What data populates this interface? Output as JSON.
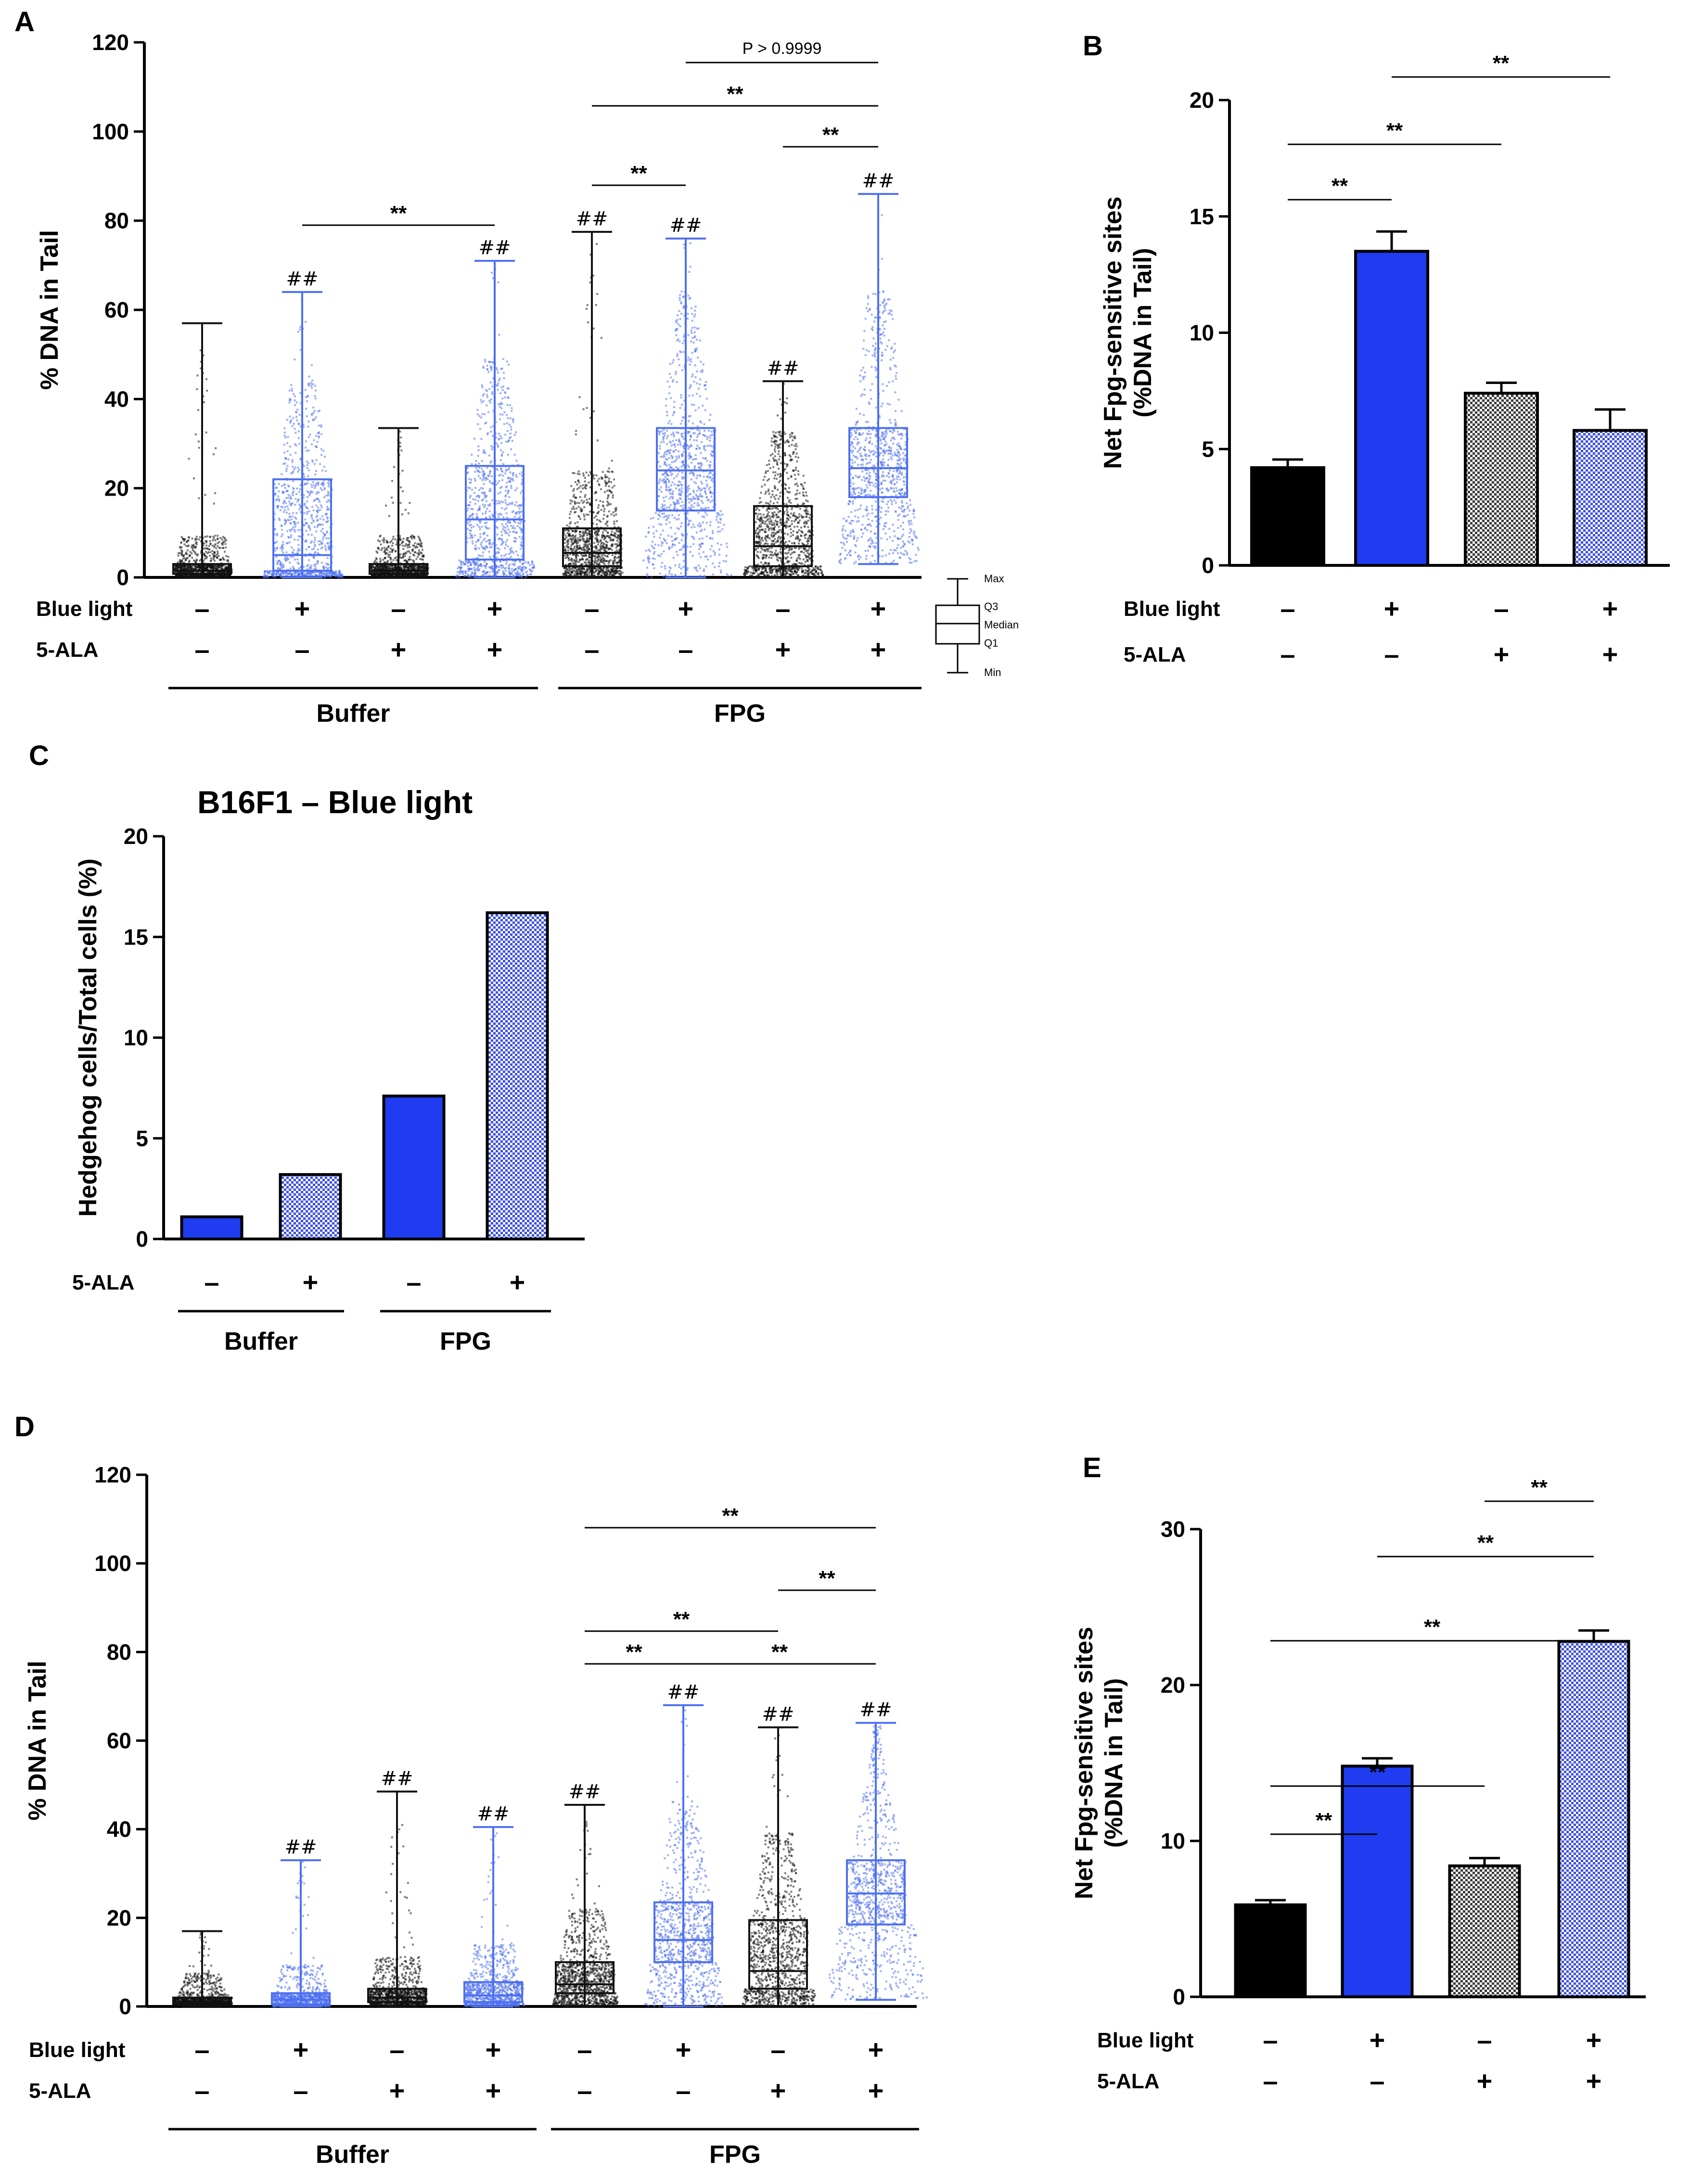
{
  "colors": {
    "blue": "#1f3cf0",
    "black": "#000000",
    "light_blue": "#4d6ff0",
    "grey": "#8a8a8a",
    "pattern_blue": "#3c50e0"
  },
  "chart_data": [
    {
      "panel": "A",
      "type": "box",
      "ylabel": "% DNA in Tail",
      "ylim": [
        0,
        120
      ],
      "yticks": [
        "0",
        "20",
        "40",
        "60",
        "80",
        "100",
        "120"
      ],
      "conditions": [
        {
          "label": "Blue light",
          "values": [
            "–",
            "+",
            "–",
            "+",
            "–",
            "+",
            "–",
            "+"
          ]
        },
        {
          "label": "5-ALA",
          "values": [
            "–",
            "–",
            "+",
            "+",
            "–",
            "–",
            "+",
            "+"
          ]
        }
      ],
      "groups": [
        "Buffer",
        "FPG"
      ],
      "boxes": [
        {
          "min": 0,
          "q1": 0.8,
          "median": 1.5,
          "q3": 3,
          "max": 57,
          "color": "black",
          "mark": ""
        },
        {
          "min": 0,
          "q1": 1.5,
          "median": 5,
          "q3": 22,
          "max": 64,
          "color": "blue",
          "mark": "##"
        },
        {
          "min": 0,
          "q1": 0.8,
          "median": 1.5,
          "q3": 3,
          "max": 33.5,
          "color": "black",
          "mark": ""
        },
        {
          "min": 0,
          "q1": 4,
          "median": 13,
          "q3": 25,
          "max": 71,
          "color": "blue",
          "mark": "##"
        },
        {
          "min": 0,
          "q1": 2.5,
          "median": 5.5,
          "q3": 11,
          "max": 77.5,
          "color": "black",
          "mark": "##"
        },
        {
          "min": 0,
          "q1": 15,
          "median": 24,
          "q3": 33.5,
          "max": 76,
          "color": "blue",
          "mark": "##"
        },
        {
          "min": 0,
          "q1": 2.5,
          "median": 7,
          "q3": 16,
          "max": 44,
          "color": "black",
          "mark": "##"
        },
        {
          "min": 3,
          "q1": 18,
          "median": 24.5,
          "q3": 33.5,
          "max": 86,
          "color": "blue",
          "mark": "##"
        }
      ],
      "brackets": [
        {
          "from": 2,
          "to": 4,
          "label": "**"
        },
        {
          "from": 5,
          "to": 6,
          "label": "**"
        },
        {
          "from": 5,
          "to": 8,
          "label": "**"
        },
        {
          "from": 7,
          "to": 8,
          "label": "**"
        },
        {
          "from": 6,
          "to": 8,
          "label": "P > 0.9999"
        }
      ],
      "legend": [
        "Max",
        "Q3",
        "Median",
        "Q1",
        "Min"
      ]
    },
    {
      "panel": "B",
      "type": "bar",
      "ylabel_lines": [
        "Net Fpg-sensitive sites",
        "(%DNA in Tail)"
      ],
      "ylim": [
        0,
        20
      ],
      "yticks": [
        "0",
        "5",
        "10",
        "15",
        "20"
      ],
      "conditions": [
        {
          "label": "Blue light",
          "values": [
            "–",
            "+",
            "–",
            "+"
          ]
        },
        {
          "label": "5-ALA",
          "values": [
            "–",
            "–",
            "+",
            "+"
          ]
        }
      ],
      "bars": [
        {
          "value": 4.2,
          "error": 0.35,
          "style": "black"
        },
        {
          "value": 13.5,
          "error": 0.85,
          "style": "blue"
        },
        {
          "value": 7.4,
          "error": 0.45,
          "style": "grey-check"
        },
        {
          "value": 5.8,
          "error": 0.9,
          "style": "blue-check"
        }
      ],
      "brackets": [
        {
          "from": 1,
          "to": 2,
          "label": "**"
        },
        {
          "from": 1,
          "to": 3,
          "label": "**"
        },
        {
          "from": 2,
          "to": 4,
          "label": "**"
        }
      ]
    },
    {
      "panel": "C",
      "type": "bar",
      "title": "B16F1 – Blue light",
      "ylabel": "Hedgehog cells/Total cells (%)",
      "ylim": [
        0,
        20
      ],
      "yticks": [
        "0",
        "5",
        "10",
        "15",
        "20"
      ],
      "conditions": [
        {
          "label": "5-ALA",
          "values": [
            "–",
            "+",
            "–",
            "+"
          ]
        }
      ],
      "groups": [
        "Buffer",
        "FPG"
      ],
      "bars": [
        {
          "value": 1.1,
          "style": "blue"
        },
        {
          "value": 3.2,
          "style": "blue-check"
        },
        {
          "value": 7.1,
          "style": "blue"
        },
        {
          "value": 16.2,
          "style": "blue-check"
        }
      ]
    },
    {
      "panel": "D",
      "type": "box",
      "ylabel": "% DNA in Tail",
      "ylim": [
        0,
        120
      ],
      "yticks": [
        "0",
        "20",
        "40",
        "60",
        "80",
        "100",
        "120"
      ],
      "conditions": [
        {
          "label": "Blue light",
          "values": [
            "–",
            "+",
            "–",
            "+",
            "–",
            "+",
            "–",
            "+"
          ]
        },
        {
          "label": "5-ALA",
          "values": [
            "–",
            "–",
            "+",
            "+",
            "–",
            "–",
            "+",
            "+"
          ]
        }
      ],
      "groups": [
        "Buffer",
        "FPG"
      ],
      "boxes": [
        {
          "min": 0,
          "q1": 0.5,
          "median": 1,
          "q3": 2,
          "max": 17,
          "color": "black",
          "mark": ""
        },
        {
          "min": 0,
          "q1": 0.5,
          "median": 1.5,
          "q3": 3,
          "max": 33,
          "color": "blue",
          "mark": "##"
        },
        {
          "min": 0,
          "q1": 1,
          "median": 2,
          "q3": 4,
          "max": 48.5,
          "color": "black",
          "mark": "##"
        },
        {
          "min": 0,
          "q1": 1,
          "median": 2.5,
          "q3": 5.5,
          "max": 40.5,
          "color": "blue",
          "mark": "##"
        },
        {
          "min": 0,
          "q1": 3,
          "median": 5,
          "q3": 10,
          "max": 45.5,
          "color": "black",
          "mark": "##"
        },
        {
          "min": 0,
          "q1": 10,
          "median": 15,
          "q3": 23.5,
          "max": 68,
          "color": "blue",
          "mark": "##"
        },
        {
          "min": 0,
          "q1": 4,
          "median": 8,
          "q3": 19.5,
          "max": 63,
          "color": "black",
          "mark": "##"
        },
        {
          "min": 1.5,
          "q1": 18.5,
          "median": 25.5,
          "q3": 33,
          "max": 64,
          "color": "blue",
          "mark": "##"
        }
      ],
      "brackets": [
        {
          "from": 5,
          "to": 6,
          "label": "**"
        },
        {
          "from": 5,
          "to": 7,
          "label": "**"
        },
        {
          "from": 7,
          "to": 8,
          "label": "**"
        },
        {
          "from": 6,
          "to": 8,
          "label": "**"
        },
        {
          "from": 5,
          "to": 8,
          "label": "**"
        }
      ]
    },
    {
      "panel": "E",
      "type": "bar",
      "ylabel_lines": [
        "Net Fpg-sensitive sites",
        "(%DNA in Tail)"
      ],
      "ylim": [
        0,
        30
      ],
      "yticks": [
        "0",
        "10",
        "20",
        "30"
      ],
      "conditions": [
        {
          "label": "Blue light",
          "values": [
            "–",
            "+",
            "–",
            "+"
          ]
        },
        {
          "label": "5-ALA",
          "values": [
            "–",
            "–",
            "+",
            "+"
          ]
        }
      ],
      "bars": [
        {
          "value": 5.9,
          "error": 0.3,
          "style": "black"
        },
        {
          "value": 14.8,
          "error": 0.5,
          "style": "blue"
        },
        {
          "value": 8.4,
          "error": 0.5,
          "style": "grey-check"
        },
        {
          "value": 22.8,
          "error": 0.7,
          "style": "blue-check"
        }
      ],
      "brackets": [
        {
          "from": 1,
          "to": 2,
          "label": "**"
        },
        {
          "from": 1,
          "to": 3,
          "label": "**"
        },
        {
          "from": 1,
          "to": 4,
          "label": "**"
        },
        {
          "from": 2,
          "to": 4,
          "label": "**"
        },
        {
          "from": 3,
          "to": 4,
          "label": "**"
        }
      ]
    }
  ]
}
